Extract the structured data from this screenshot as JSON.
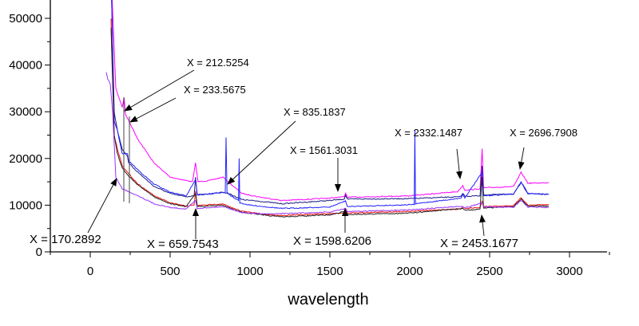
{
  "chart_data": {
    "type": "line",
    "title": "",
    "xlabel": "wavelength",
    "ylabel": "",
    "xlim": [
      -250,
      3250
    ],
    "ylim": [
      0,
      54000
    ],
    "x_ticks": [
      "0",
      "500",
      "1000",
      "1500",
      "2000",
      "2500",
      "3000"
    ],
    "y_ticks": [
      "0",
      "10000",
      "20000",
      "30000",
      "40000",
      "50000"
    ],
    "grid": false,
    "legend": "none",
    "series": [
      {
        "color": "#ff00ff",
        "points": [
          [
            130,
            60000
          ],
          [
            160,
            35000
          ],
          [
            200,
            31000
          ],
          [
            212,
            33000
          ],
          [
            220,
            29500
          ],
          [
            300,
            24000
          ],
          [
            400,
            19000
          ],
          [
            500,
            16000
          ],
          [
            640,
            15000
          ],
          [
            659,
            19000
          ],
          [
            675,
            15000
          ],
          [
            750,
            15300
          ],
          [
            830,
            16000
          ],
          [
            880,
            14500
          ],
          [
            950,
            12500
          ],
          [
            1050,
            11800
          ],
          [
            1200,
            11000
          ],
          [
            1500,
            11500
          ],
          [
            1590,
            11800
          ],
          [
            1598,
            12600
          ],
          [
            1610,
            11700
          ],
          [
            2000,
            12000
          ],
          [
            2300,
            12900
          ],
          [
            2332,
            14200
          ],
          [
            2345,
            13200
          ],
          [
            2440,
            13500
          ],
          [
            2453,
            22000
          ],
          [
            2462,
            13700
          ],
          [
            2650,
            14000
          ],
          [
            2697,
            17000
          ],
          [
            2740,
            14700
          ],
          [
            2870,
            14800
          ]
        ]
      },
      {
        "color": "#1a1a80",
        "points": [
          [
            130,
            60000
          ],
          [
            150,
            30000
          ],
          [
            170,
            26000
          ],
          [
            200,
            22000
          ],
          [
            233,
            20500
          ],
          [
            240,
            19000
          ],
          [
            300,
            17000
          ],
          [
            400,
            14000
          ],
          [
            500,
            12500
          ],
          [
            600,
            11800
          ],
          [
            650,
            12000
          ],
          [
            659,
            16000
          ],
          [
            670,
            12200
          ],
          [
            750,
            12400
          ],
          [
            830,
            12800
          ],
          [
            880,
            12300
          ],
          [
            950,
            11200
          ],
          [
            1100,
            10700
          ],
          [
            1200,
            10300
          ],
          [
            1500,
            11000
          ],
          [
            1590,
            11300
          ],
          [
            1598,
            12200
          ],
          [
            1610,
            11300
          ],
          [
            2000,
            11400
          ],
          [
            2320,
            11800
          ],
          [
            2332,
            12600
          ],
          [
            2345,
            11900
          ],
          [
            2440,
            12000
          ],
          [
            2453,
            18500
          ],
          [
            2462,
            12200
          ],
          [
            2650,
            12400
          ],
          [
            2697,
            14800
          ],
          [
            2740,
            12500
          ],
          [
            2870,
            12300
          ]
        ]
      },
      {
        "color": "#2222ff",
        "points": [
          [
            130,
            60000
          ],
          [
            150,
            28000
          ],
          [
            170,
            26000
          ],
          [
            200,
            21000
          ],
          [
            233,
            21000
          ],
          [
            240,
            19500
          ],
          [
            300,
            17500
          ],
          [
            400,
            14500
          ],
          [
            500,
            12800
          ],
          [
            600,
            12000
          ],
          [
            659,
            15500
          ],
          [
            670,
            12200
          ],
          [
            830,
            12700
          ],
          [
            845,
            12700
          ],
          [
            850,
            24500
          ],
          [
            856,
            12700
          ],
          [
            880,
            12000
          ],
          [
            928,
            11000
          ],
          [
            932,
            20000
          ],
          [
            936,
            10500
          ],
          [
            1000,
            10000
          ],
          [
            1200,
            9300
          ],
          [
            1500,
            9600
          ],
          [
            1598,
            10900
          ],
          [
            1610,
            9700
          ],
          [
            2000,
            10100
          ],
          [
            2028,
            10100
          ],
          [
            2032,
            26000
          ],
          [
            2036,
            10300
          ],
          [
            2320,
            11500
          ],
          [
            2332,
            12300
          ],
          [
            2345,
            11600
          ],
          [
            2453,
            17000
          ],
          [
            2462,
            12000
          ],
          [
            2650,
            12400
          ],
          [
            2697,
            15000
          ],
          [
            2740,
            12500
          ],
          [
            2870,
            12300
          ]
        ]
      },
      {
        "color": "#ee1111",
        "points": [
          [
            130,
            50000
          ],
          [
            150,
            25000
          ],
          [
            170,
            22000
          ],
          [
            200,
            18500
          ],
          [
            233,
            17000
          ],
          [
            300,
            14500
          ],
          [
            400,
            12000
          ],
          [
            500,
            10500
          ],
          [
            600,
            9800
          ],
          [
            650,
            10000
          ],
          [
            659,
            13000
          ],
          [
            670,
            9900
          ],
          [
            830,
            10300
          ],
          [
            880,
            9500
          ],
          [
            950,
            8700
          ],
          [
            1100,
            8000
          ],
          [
            1200,
            7800
          ],
          [
            1500,
            8200
          ],
          [
            1590,
            8300
          ],
          [
            1598,
            9000
          ],
          [
            1610,
            8300
          ],
          [
            2000,
            8700
          ],
          [
            2320,
            9200
          ],
          [
            2332,
            9700
          ],
          [
            2345,
            9300
          ],
          [
            2440,
            9500
          ],
          [
            2453,
            10800
          ],
          [
            2462,
            9700
          ],
          [
            2650,
            9900
          ],
          [
            2697,
            11600
          ],
          [
            2740,
            10000
          ],
          [
            2870,
            10100
          ]
        ]
      },
      {
        "color": "#222222",
        "points": [
          [
            130,
            48000
          ],
          [
            150,
            25000
          ],
          [
            170,
            21000
          ],
          [
            200,
            18000
          ],
          [
            233,
            16500
          ],
          [
            300,
            14300
          ],
          [
            400,
            11800
          ],
          [
            500,
            10300
          ],
          [
            600,
            9700
          ],
          [
            659,
            12500
          ],
          [
            670,
            9700
          ],
          [
            830,
            10000
          ],
          [
            880,
            9300
          ],
          [
            950,
            8500
          ],
          [
            1100,
            7800
          ],
          [
            1200,
            7500
          ],
          [
            1500,
            7900
          ],
          [
            1598,
            8700
          ],
          [
            1610,
            8000
          ],
          [
            2000,
            8300
          ],
          [
            2332,
            9300
          ],
          [
            2345,
            8900
          ],
          [
            2440,
            9100
          ],
          [
            2453,
            16000
          ],
          [
            2462,
            9400
          ],
          [
            2650,
            9700
          ],
          [
            2697,
            11300
          ],
          [
            2740,
            9800
          ],
          [
            2870,
            9800
          ]
        ]
      },
      {
        "color": "#9933ff",
        "points": [
          [
            100,
            38500
          ],
          [
            110,
            37000
          ],
          [
            125,
            36000
          ],
          [
            140,
            30000
          ],
          [
            160,
            16000
          ],
          [
            200,
            13500
          ],
          [
            300,
            12000
          ],
          [
            400,
            10300
          ],
          [
            500,
            9500
          ],
          [
            600,
            9200
          ],
          [
            659,
            11000
          ],
          [
            670,
            9300
          ],
          [
            830,
            9700
          ],
          [
            880,
            9200
          ],
          [
            950,
            8400
          ],
          [
            1100,
            8100
          ],
          [
            1500,
            8500
          ],
          [
            1598,
            9300
          ],
          [
            1610,
            8600
          ],
          [
            2000,
            9000
          ],
          [
            2332,
            9800
          ],
          [
            2345,
            9400
          ],
          [
            2453,
            10500
          ],
          [
            2462,
            9600
          ],
          [
            2650,
            9600
          ],
          [
            2697,
            11000
          ],
          [
            2740,
            9600
          ],
          [
            2870,
            9500
          ]
        ]
      }
    ],
    "annotations": [
      {
        "label": "X = 212.5254",
        "x": 212.5254
      },
      {
        "label": "X = 233.5675",
        "x": 233.5675
      },
      {
        "label": "X = 835.1837",
        "x": 835.1837
      },
      {
        "label": "X = 1561.3031",
        "x": 1561.3031
      },
      {
        "label": "X = 2332.1487",
        "x": 2332.1487
      },
      {
        "label": "X = 2696.7908",
        "x": 2696.7908
      },
      {
        "label": "X = 170.2892",
        "x": 170.2892
      },
      {
        "label": "X = 659.7543",
        "x": 659.7543
      },
      {
        "label": "X = 1598.6206",
        "x": 1598.6206
      },
      {
        "label": "X = 2453.1677",
        "x": 2453.1677
      }
    ]
  }
}
